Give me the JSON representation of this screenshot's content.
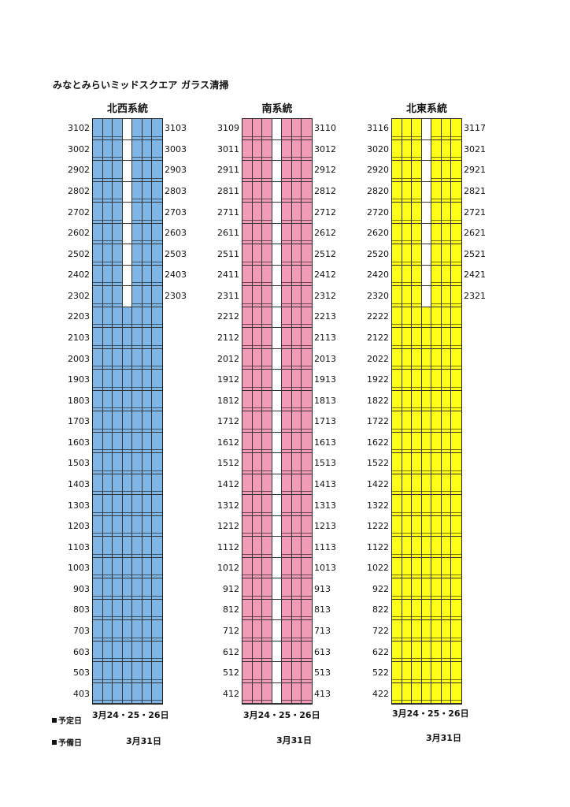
{
  "title": "みなとみらいミッドスクエア ガラス清掃",
  "legend": {
    "scheduled": "予定日",
    "reserve": "予備日"
  },
  "colors": {
    "northwest": "#7fb6e6",
    "south": "#f19bb7",
    "northeast": "#ffff1a"
  },
  "columns": [
    {
      "key": "northwest",
      "label": "北西系統",
      "left_labels": [
        "3102",
        "3002",
        "2902",
        "2802",
        "2702",
        "2602",
        "2502",
        "2402",
        "2302",
        "2203",
        "2103",
        "2003",
        "1903",
        "1803",
        "1703",
        "1603",
        "1503",
        "1403",
        "1303",
        "1203",
        "1103",
        "1003",
        "903",
        "803",
        "703",
        "603",
        "503",
        "403"
      ],
      "right_labels": [
        "3103",
        "3003",
        "2903",
        "2803",
        "2703",
        "2603",
        "2503",
        "2403",
        "2303"
      ],
      "schedule": "3月24・25・26日",
      "reserve": "3月31日"
    },
    {
      "key": "south",
      "label": "南系統",
      "left_labels": [
        "3109",
        "3011",
        "2911",
        "2811",
        "2711",
        "2611",
        "2511",
        "2411",
        "2311",
        "2212",
        "2112",
        "2012",
        "1912",
        "1812",
        "1712",
        "1612",
        "1512",
        "1412",
        "1312",
        "1212",
        "1112",
        "1012",
        "912",
        "812",
        "712",
        "612",
        "512",
        "412"
      ],
      "right_labels": [
        "3110",
        "3012",
        "2912",
        "2812",
        "2712",
        "2612",
        "2512",
        "2412",
        "2312",
        "2213",
        "2113",
        "2013",
        "1913",
        "1813",
        "1713",
        "1613",
        "1513",
        "1413",
        "1313",
        "1213",
        "1113",
        "1013",
        "913",
        "813",
        "713",
        "613",
        "513",
        "413"
      ],
      "schedule": "3月24・25・26日",
      "reserve": "3月31日"
    },
    {
      "key": "northeast",
      "label": "北東系統",
      "left_labels": [
        "3116",
        "3020",
        "2920",
        "2820",
        "2720",
        "2620",
        "2520",
        "2420",
        "2320",
        "2222",
        "2122",
        "2022",
        "1922",
        "1822",
        "1722",
        "1622",
        "1522",
        "1422",
        "1322",
        "1222",
        "1122",
        "1022",
        "922",
        "822",
        "722",
        "622",
        "522",
        "422"
      ],
      "right_labels": [
        "3117",
        "3021",
        "2921",
        "2821",
        "2721",
        "2621",
        "2521",
        "2421",
        "2321"
      ],
      "schedule": "3月24・25・26日",
      "reserve": "3月31日"
    }
  ]
}
